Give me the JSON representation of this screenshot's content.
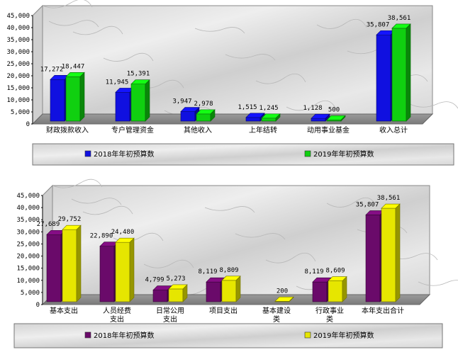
{
  "chart_data": [
    {
      "type": "bar",
      "title": "",
      "xlabel": "",
      "ylabel": "",
      "ylim": [
        0,
        45000
      ],
      "yticks": [
        "0",
        "5,000",
        "10,000",
        "15,000",
        "20,000",
        "25,000",
        "30,000",
        "35,000",
        "40,000",
        "45,000"
      ],
      "categories": [
        "财政拨款收入",
        "专户管理资金",
        "其他收入",
        "上年结转",
        "动用事业基金",
        "收入总计"
      ],
      "series": [
        {
          "name": "2018年年初预算数",
          "color": "#1010e0",
          "values": [
            17272,
            11945,
            3947,
            1515,
            1128,
            35807
          ],
          "labels": [
            "17,272",
            "11,945",
            "3,947",
            "1,515",
            "1,128",
            "35,807"
          ]
        },
        {
          "name": "2019年年初预算数",
          "color": "#10d010",
          "values": [
            18447,
            15391,
            2978,
            1245,
            500,
            38561
          ],
          "labels": [
            "18,447",
            "15,391",
            "2,978",
            "1,245",
            "500",
            "38,561"
          ]
        }
      ],
      "legend": "bottom",
      "grid": false
    },
    {
      "type": "bar",
      "title": "",
      "xlabel": "",
      "ylabel": "",
      "ylim": [
        0,
        45000
      ],
      "yticks": [
        "0",
        "5,000",
        "10,000",
        "15,000",
        "20,000",
        "25,000",
        "30,000",
        "35,000",
        "40,000",
        "45,000"
      ],
      "categories": [
        "基本支出",
        "人员经费支出",
        "日常公用支出",
        "项目支出",
        "基本建设类",
        "行政事业类",
        "本年支出合计"
      ],
      "categoryLines": [
        [
          "基本支出"
        ],
        [
          "人员经费",
          "支出"
        ],
        [
          "日常公用",
          "支出"
        ],
        [
          "项目支出"
        ],
        [
          "基本建设",
          "类"
        ],
        [
          "行政事业",
          "类"
        ],
        [
          "本年支出合计"
        ]
      ],
      "series": [
        {
          "name": "2018年年初预算数",
          "color": "#6a0a6a",
          "values": [
            27689,
            22890,
            4799,
            8119,
            0,
            8119,
            35807
          ],
          "labels": [
            "27,689",
            "22,890",
            "4,799",
            "8,119",
            "",
            "8,119",
            "35,807"
          ]
        },
        {
          "name": "2019年年初预算数",
          "color": "#e6e600",
          "values": [
            29752,
            24480,
            5273,
            8809,
            200,
            8609,
            38561
          ],
          "labels": [
            "29,752",
            "24,480",
            "5,273",
            "8,809",
            "200",
            "8,609",
            "38,561"
          ]
        }
      ],
      "legend": "bottom",
      "grid": false
    }
  ]
}
